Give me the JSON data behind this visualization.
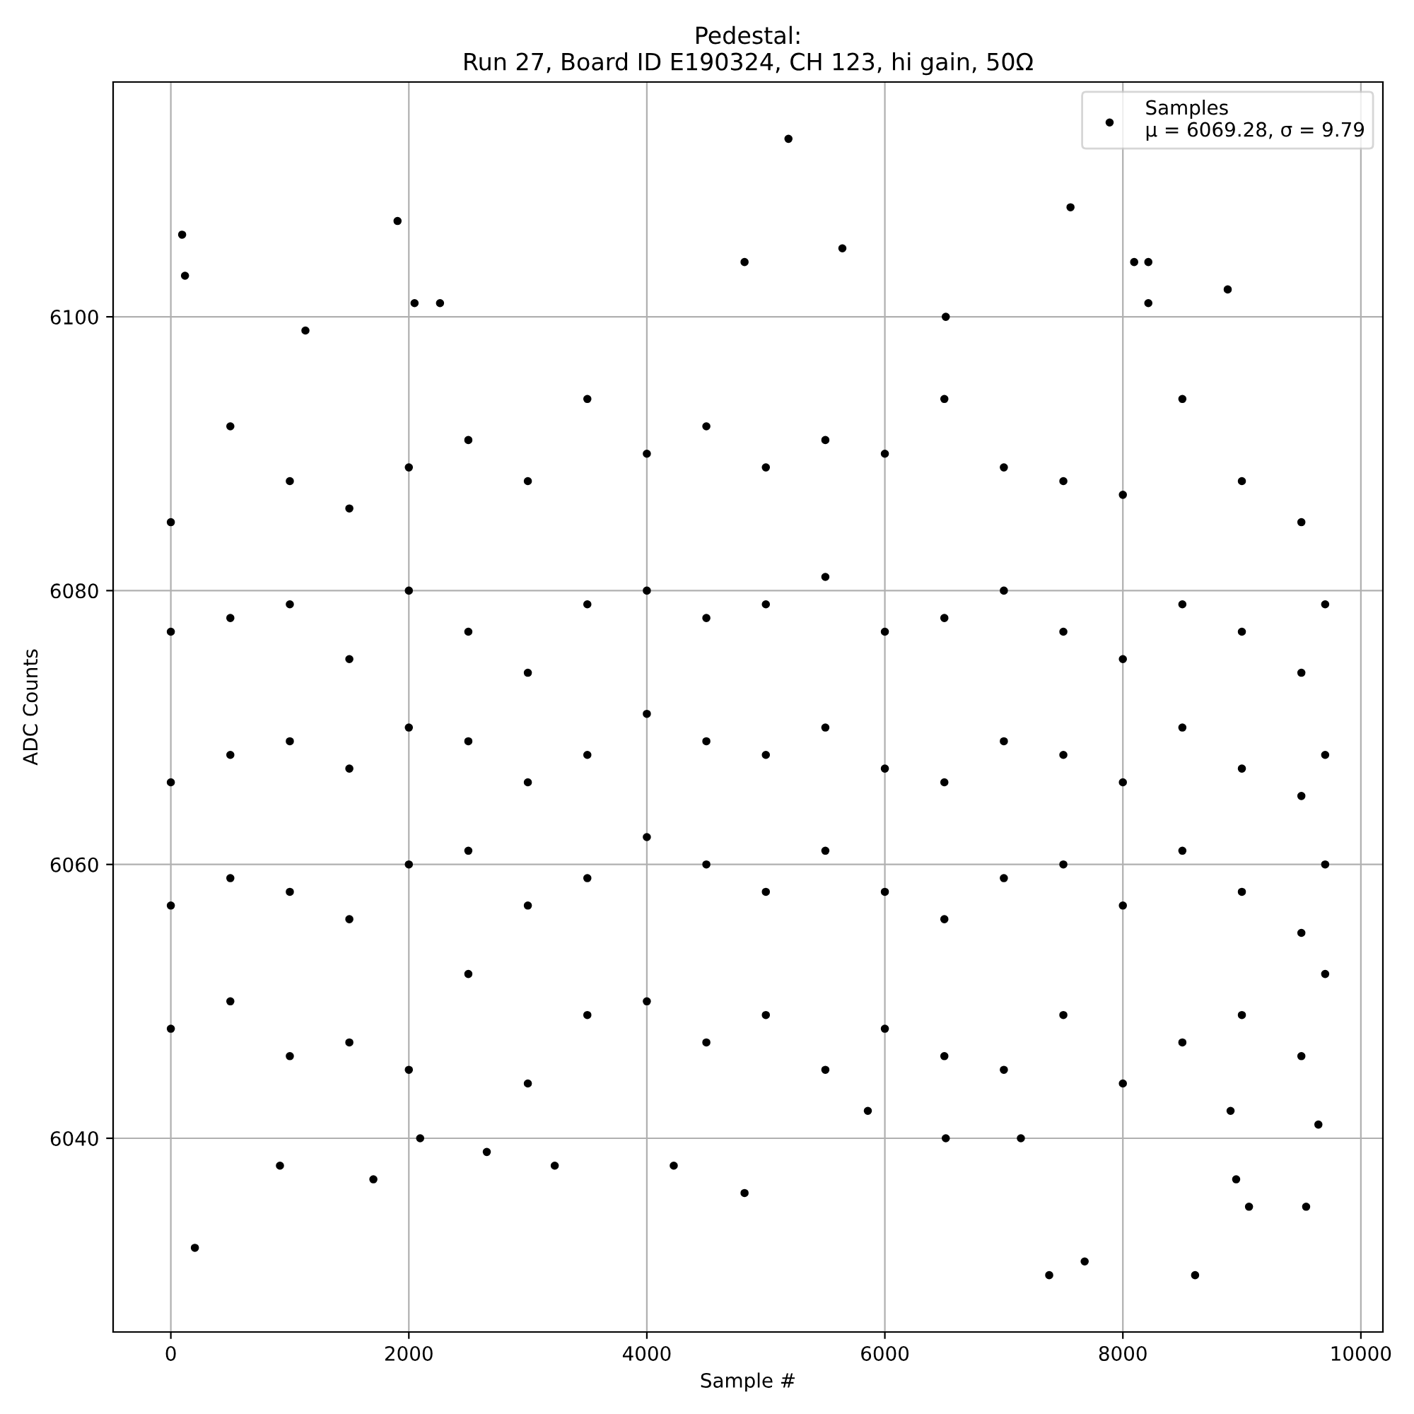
{
  "chart_data": {
    "type": "scatter",
    "title": "Pedestal:\nRun 27, Board ID E190324, CH 123, hi gain, 50Ω",
    "xlabel": "Sample #",
    "ylabel": "ADC Counts",
    "xlim": [
      -485,
      10185
    ],
    "ylim": [
      6025.85,
      6117.15
    ],
    "xticks": [
      0,
      2000,
      4000,
      6000,
      8000,
      10000
    ],
    "yticks": [
      6040,
      6060,
      6080,
      6100
    ],
    "grid": true,
    "legend": "top right",
    "marker": "circle",
    "series": [
      {
        "name": "Samples\nμ = 6069.28, σ = 9.79",
        "color": "#000000",
        "x": [
          95,
          119,
          202,
          1905,
          1131,
          917,
          1702,
          2048,
          2095,
          2262,
          2655,
          3226,
          4226,
          5190,
          4821,
          4821,
          5643,
          5857,
          6512,
          6512,
          7143,
          7381,
          7560,
          7679,
          8095,
          8214,
          8607,
          8881,
          8952,
          9060,
          9540,
          9643,
          8905,
          8214,
          0,
          0,
          0,
          0,
          0,
          500,
          500,
          500,
          500,
          500,
          1000,
          1000,
          1000,
          1000,
          1000,
          1500,
          1500,
          1500,
          1500,
          1500,
          2000,
          2000,
          2000,
          2000,
          2000,
          2500,
          2500,
          2500,
          2500,
          2500,
          3000,
          3000,
          3000,
          3000,
          3000,
          3500,
          3500,
          3500,
          3500,
          3500,
          4000,
          4000,
          4000,
          4000,
          4000,
          4500,
          4500,
          4500,
          4500,
          4500,
          5000,
          5000,
          5000,
          5000,
          5000,
          5500,
          5500,
          5500,
          5500,
          5500,
          6000,
          6000,
          6000,
          6000,
          6000,
          6500,
          6500,
          6500,
          6500,
          6500,
          7000,
          7000,
          7000,
          7000,
          7000,
          7500,
          7500,
          7500,
          7500,
          7500,
          8000,
          8000,
          8000,
          8000,
          8000,
          8500,
          8500,
          8500,
          8500,
          8500,
          9000,
          9000,
          9000,
          9000,
          9000,
          9500,
          9500,
          9500,
          9500,
          9500,
          9700,
          9700,
          9700,
          9700
        ],
        "values": [
          6106,
          6103,
          6032,
          6107,
          6099,
          6038,
          6037,
          6101,
          6040,
          6101,
          6039,
          6038,
          6038,
          6113,
          6036,
          6104,
          6105,
          6042,
          6040,
          6100,
          6040,
          6030,
          6108,
          6031,
          6104,
          6104,
          6030,
          6102,
          6037,
          6035,
          6035,
          6041,
          6042,
          6101,
          6048,
          6057,
          6066,
          6077,
          6085,
          6050,
          6059,
          6068,
          6078,
          6092,
          6046,
          6058,
          6069,
          6079,
          6088,
          6047,
          6056,
          6067,
          6075,
          6086,
          6045,
          6060,
          6070,
          6080,
          6089,
          6052,
          6061,
          6069,
          6077,
          6091,
          6044,
          6057,
          6066,
          6074,
          6088,
          6049,
          6059,
          6068,
          6079,
          6094,
          6050,
          6062,
          6071,
          6080,
          6090,
          6047,
          6060,
          6069,
          6078,
          6092,
          6049,
          6058,
          6068,
          6079,
          6089,
          6045,
          6061,
          6070,
          6081,
          6091,
          6048,
          6058,
          6067,
          6077,
          6090,
          6046,
          6056,
          6066,
          6078,
          6094,
          6045,
          6059,
          6069,
          6080,
          6089,
          6049,
          6060,
          6068,
          6077,
          6088,
          6044,
          6057,
          6066,
          6075,
          6087,
          6047,
          6061,
          6070,
          6079,
          6094,
          6049,
          6058,
          6067,
          6077,
          6088,
          6046,
          6055,
          6065,
          6074,
          6085,
          6052,
          6060,
          6068,
          6079
        ]
      }
    ]
  }
}
